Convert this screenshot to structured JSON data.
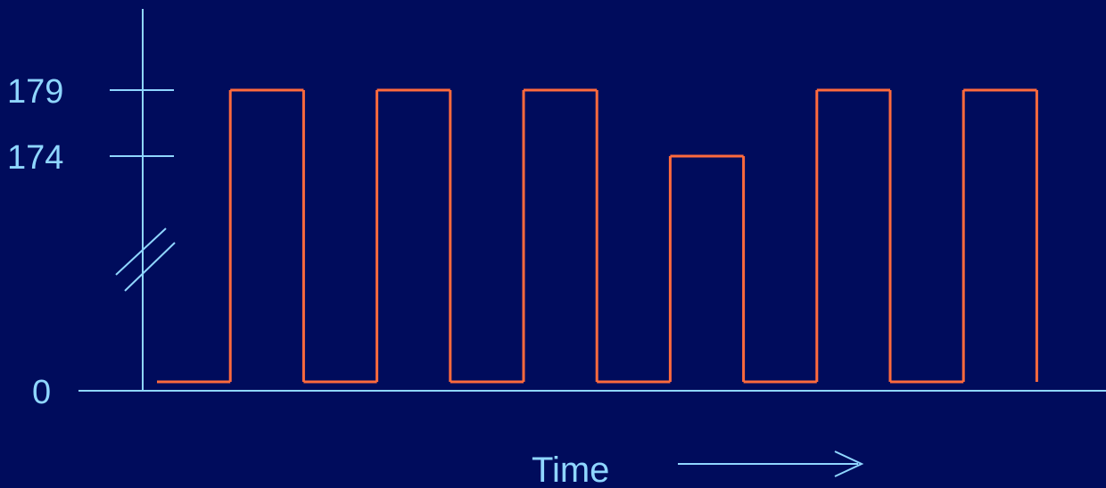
{
  "chart_data": {
    "type": "line",
    "xlabel": "Time",
    "ylabel": "",
    "y_ticks": [
      "179",
      "174",
      "0"
    ],
    "y_axis_break": true,
    "series": [
      {
        "step_segments": [
          {
            "level": 0,
            "start": 0,
            "end": 1
          },
          {
            "level": 179,
            "start": 1,
            "end": 2
          },
          {
            "level": 0,
            "start": 2,
            "end": 3
          },
          {
            "level": 179,
            "start": 3,
            "end": 4
          },
          {
            "level": 0,
            "start": 4,
            "end": 5
          },
          {
            "level": 179,
            "start": 5,
            "end": 6
          },
          {
            "level": 0,
            "start": 6,
            "end": 7
          },
          {
            "level": 174,
            "start": 7,
            "end": 8
          },
          {
            "level": 0,
            "start": 8,
            "end": 9
          },
          {
            "level": 179,
            "start": 9,
            "end": 10
          },
          {
            "level": 0,
            "start": 10,
            "end": 11
          },
          {
            "level": 179,
            "start": 11,
            "end": 12
          },
          {
            "level": 0,
            "start": 12,
            "end": 12
          }
        ]
      }
    ],
    "colors": {
      "background": "#000c5c",
      "axis": "#8fd6ff",
      "signal": "#ff6a3d"
    }
  }
}
